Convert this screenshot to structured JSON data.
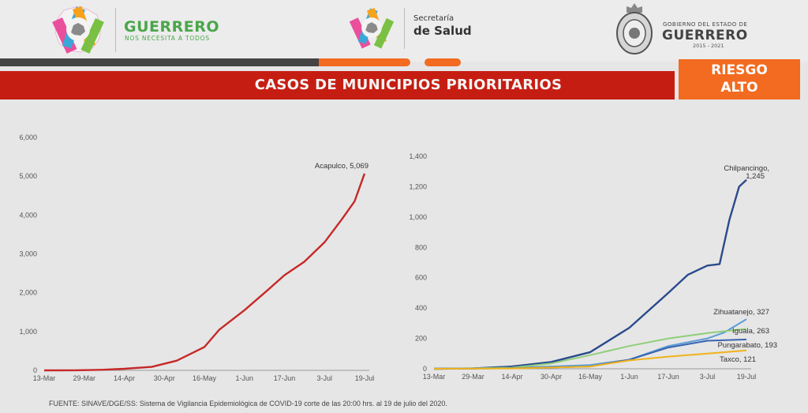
{
  "header": {
    "guerrero_brand": "GUERRERO",
    "guerrero_tagline": "NOS NECESITA A TODOS",
    "secretaria_line1": "Secretaría",
    "secretaria_line2": "de Salud",
    "gobierno_line1": "GOBIERNO DEL ESTADO DE",
    "gobierno_line2": "GUERRERO",
    "gobierno_years": "2015 - 2021"
  },
  "title": "CASOS DE MUNICIPIOS PRIORITARIOS",
  "risk": {
    "line1": "RIESGO",
    "line2": "ALTO",
    "color": "#f26b21"
  },
  "colors": {
    "title_bar": "#c61d12",
    "accent_orange": "#f26b21",
    "dark_bar": "#444444"
  },
  "footer": "FUENTE: SINAVE/DGE/SS: Sistema de Vigilancia Epidemiológica de COVID-19 corte de las 20:00 hrs. al 19 de julio del 2020.",
  "chart_data": [
    {
      "type": "line",
      "title": "",
      "xlabel": "",
      "ylabel": "",
      "x_ticks": [
        "13-Mar",
        "29-Mar",
        "14-Apr",
        "30-Apr",
        "16-May",
        "1-Jun",
        "17-Jun",
        "3-Jul",
        "19-Jul"
      ],
      "y_ticks": [
        "0",
        "1,000",
        "2,000",
        "3,000",
        "4,000",
        "5,000",
        "6,000"
      ],
      "ylim": [
        0,
        6000
      ],
      "grid": false,
      "series": [
        {
          "name": "Acapulco",
          "label": "Acapulco, 5,069",
          "color": "#c62828",
          "points": [
            [
              "2020-03-13",
              0
            ],
            [
              "2020-03-25",
              2
            ],
            [
              "2020-04-05",
              15
            ],
            [
              "2020-04-14",
              40
            ],
            [
              "2020-04-25",
              90
            ],
            [
              "2020-05-05",
              250
            ],
            [
              "2020-05-16",
              600
            ],
            [
              "2020-05-22",
              1050
            ],
            [
              "2020-06-01",
              1550
            ],
            [
              "2020-06-10",
              2050
            ],
            [
              "2020-06-17",
              2450
            ],
            [
              "2020-06-25",
              2800
            ],
            [
              "2020-07-03",
              3300
            ],
            [
              "2020-07-10",
              3900
            ],
            [
              "2020-07-15",
              4350
            ],
            [
              "2020-07-19",
              5069
            ]
          ]
        }
      ]
    },
    {
      "type": "line",
      "title": "",
      "xlabel": "",
      "ylabel": "",
      "x_ticks": [
        "13-Mar",
        "29-Mar",
        "14-Apr",
        "30-Apr",
        "16-May",
        "1-Jun",
        "17-Jun",
        "3-Jul",
        "19-Jul"
      ],
      "y_ticks": [
        "0",
        "200",
        "400",
        "600",
        "800",
        "1,000",
        "1,200",
        "1,400"
      ],
      "ylim": [
        0,
        1400
      ],
      "grid": false,
      "series": [
        {
          "name": "Chilpancingo",
          "label_line1": "Chilpancingo,",
          "label_line2": "1,245",
          "color": "#2a4a8c",
          "points": [
            [
              "2020-03-13",
              0
            ],
            [
              "2020-03-29",
              2
            ],
            [
              "2020-04-14",
              15
            ],
            [
              "2020-04-30",
              45
            ],
            [
              "2020-05-16",
              110
            ],
            [
              "2020-06-01",
              270
            ],
            [
              "2020-06-17",
              500
            ],
            [
              "2020-06-25",
              620
            ],
            [
              "2020-07-03",
              680
            ],
            [
              "2020-07-08",
              690
            ],
            [
              "2020-07-12",
              980
            ],
            [
              "2020-07-16",
              1200
            ],
            [
              "2020-07-19",
              1245
            ]
          ]
        },
        {
          "name": "Zihuatanejo",
          "label": "Zihuatanejo, 327",
          "color": "#5b9bd5",
          "points": [
            [
              "2020-03-13",
              0
            ],
            [
              "2020-04-14",
              5
            ],
            [
              "2020-05-16",
              25
            ],
            [
              "2020-06-01",
              60
            ],
            [
              "2020-06-17",
              150
            ],
            [
              "2020-07-03",
              200
            ],
            [
              "2020-07-10",
              240
            ],
            [
              "2020-07-19",
              327
            ]
          ]
        },
        {
          "name": "Iguala",
          "label": "Iguala, 263",
          "color": "#8fcf7a",
          "points": [
            [
              "2020-03-13",
              0
            ],
            [
              "2020-04-14",
              8
            ],
            [
              "2020-04-30",
              35
            ],
            [
              "2020-05-16",
              90
            ],
            [
              "2020-06-01",
              150
            ],
            [
              "2020-06-17",
              200
            ],
            [
              "2020-07-03",
              235
            ],
            [
              "2020-07-19",
              263
            ]
          ]
        },
        {
          "name": "Pungarabato",
          "label": "Pungarabato, 193",
          "color": "#3b64b0",
          "points": [
            [
              "2020-03-13",
              0
            ],
            [
              "2020-04-14",
              3
            ],
            [
              "2020-05-16",
              15
            ],
            [
              "2020-06-01",
              60
            ],
            [
              "2020-06-17",
              140
            ],
            [
              "2020-07-03",
              185
            ],
            [
              "2020-07-19",
              193
            ]
          ]
        },
        {
          "name": "Taxco",
          "label": "Taxco, 121",
          "color": "#f0b21a",
          "points": [
            [
              "2020-03-13",
              0
            ],
            [
              "2020-04-14",
              2
            ],
            [
              "2020-05-16",
              15
            ],
            [
              "2020-06-01",
              55
            ],
            [
              "2020-06-17",
              80
            ],
            [
              "2020-07-03",
              100
            ],
            [
              "2020-07-19",
              121
            ]
          ]
        }
      ]
    }
  ]
}
